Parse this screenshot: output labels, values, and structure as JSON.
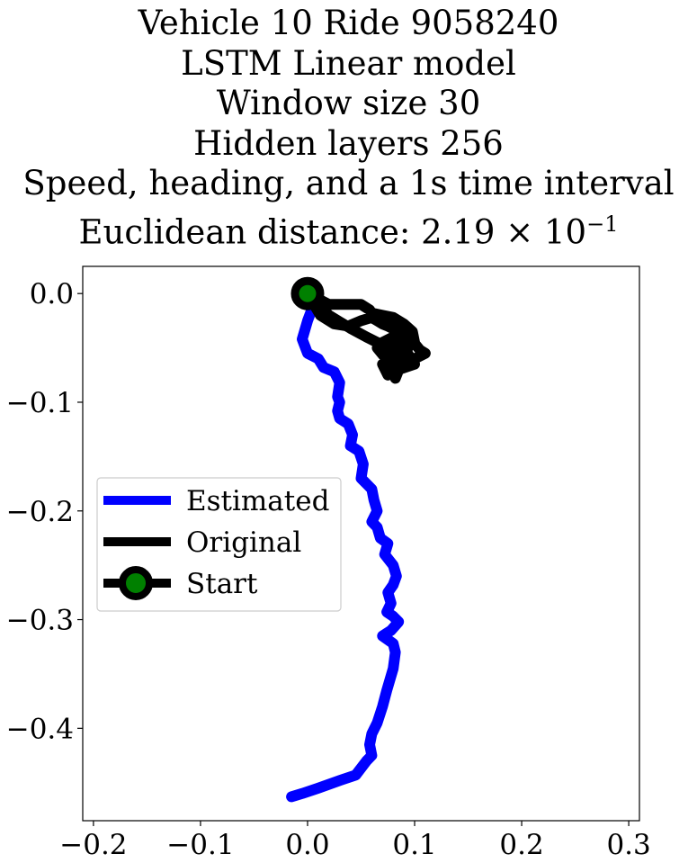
{
  "title": {
    "line1": "Vehicle 10 Ride 9058240",
    "line2": "LSTM Linear model",
    "line3": "Window size 30",
    "line4": "Hidden layers 256",
    "line5": "Speed, heading, and a 1s time interval",
    "line6_prefix": "Euclidean distance: 2.19 × 10",
    "line6_exp": "−1"
  },
  "chart_data": {
    "type": "line",
    "xlim": [
      -0.21,
      0.31
    ],
    "ylim": [
      -0.485,
      0.025
    ],
    "xticks": [
      -0.2,
      -0.1,
      0.0,
      0.1,
      0.2,
      0.3
    ],
    "xtick_labels": [
      "−0.2",
      "−0.1",
      "0.0",
      "0.1",
      "0.2",
      "0.3"
    ],
    "yticks": [
      0.0,
      -0.1,
      -0.2,
      -0.3,
      -0.4
    ],
    "ytick_labels": [
      "0.0",
      "−0.1",
      "−0.2",
      "−0.3",
      "−0.4"
    ],
    "grid": false,
    "legend_position": "center-left",
    "series": [
      {
        "name": "Estimated",
        "color": "#0000ff",
        "x": [
          0.0,
          0.005,
          0.0,
          -0.005,
          0.0,
          0.01,
          0.015,
          0.025,
          0.03,
          0.028,
          0.03,
          0.028,
          0.03,
          0.038,
          0.042,
          0.04,
          0.048,
          0.052,
          0.05,
          0.055,
          0.06,
          0.062,
          0.065,
          0.06,
          0.065,
          0.068,
          0.075,
          0.072,
          0.08,
          0.083,
          0.08,
          0.075,
          0.078,
          0.074,
          0.08,
          0.085,
          0.078,
          0.07,
          0.08,
          0.082,
          0.08,
          0.074,
          0.07,
          0.065,
          0.06,
          0.058,
          0.06,
          0.055,
          0.045,
          0.03,
          0.01,
          -0.005,
          -0.015
        ],
        "y": [
          0.0,
          -0.012,
          -0.025,
          -0.042,
          -0.055,
          -0.06,
          -0.068,
          -0.072,
          -0.082,
          -0.095,
          -0.1,
          -0.108,
          -0.115,
          -0.12,
          -0.13,
          -0.14,
          -0.145,
          -0.157,
          -0.17,
          -0.175,
          -0.18,
          -0.19,
          -0.2,
          -0.21,
          -0.215,
          -0.225,
          -0.23,
          -0.24,
          -0.25,
          -0.26,
          -0.268,
          -0.275,
          -0.285,
          -0.293,
          -0.297,
          -0.302,
          -0.31,
          -0.315,
          -0.322,
          -0.33,
          -0.345,
          -0.365,
          -0.38,
          -0.395,
          -0.405,
          -0.415,
          -0.425,
          -0.43,
          -0.443,
          -0.448,
          -0.455,
          -0.46,
          -0.463
        ]
      },
      {
        "name": "Original",
        "color": "#000000",
        "x": [
          0.0,
          0.01,
          0.02,
          0.035,
          0.05,
          0.058,
          0.06,
          0.07,
          0.08,
          0.09,
          0.098,
          0.1,
          0.092,
          0.085,
          0.075,
          0.07,
          0.065,
          0.06,
          0.05,
          0.038,
          0.025,
          0.012,
          0.0,
          0.02,
          0.04,
          0.055,
          0.065,
          0.075,
          0.085,
          0.095,
          0.105,
          0.11,
          0.1,
          0.09,
          0.095,
          0.085,
          0.075,
          0.085,
          0.095,
          0.08,
          0.065,
          0.07,
          0.08,
          0.09,
          0.1,
          0.085,
          0.075,
          0.07,
          0.08,
          0.09,
          0.082
        ],
        "y": [
          0.0,
          -0.005,
          -0.01,
          -0.01,
          -0.01,
          -0.015,
          -0.018,
          -0.02,
          -0.022,
          -0.028,
          -0.035,
          -0.045,
          -0.04,
          -0.035,
          -0.03,
          -0.028,
          -0.025,
          -0.022,
          -0.025,
          -0.03,
          -0.028,
          -0.02,
          0.0,
          -0.02,
          -0.032,
          -0.04,
          -0.045,
          -0.05,
          -0.048,
          -0.04,
          -0.052,
          -0.055,
          -0.06,
          -0.063,
          -0.045,
          -0.042,
          -0.05,
          -0.058,
          -0.062,
          -0.068,
          -0.05,
          -0.045,
          -0.04,
          -0.05,
          -0.065,
          -0.07,
          -0.075,
          -0.065,
          -0.06,
          -0.058,
          -0.078
        ]
      }
    ],
    "start": {
      "name": "Start",
      "x": 0.0,
      "y": 0.0,
      "edge_color": "#000000",
      "face_color": "#008000"
    },
    "legend_entries": [
      "Estimated",
      "Original",
      "Start"
    ]
  }
}
